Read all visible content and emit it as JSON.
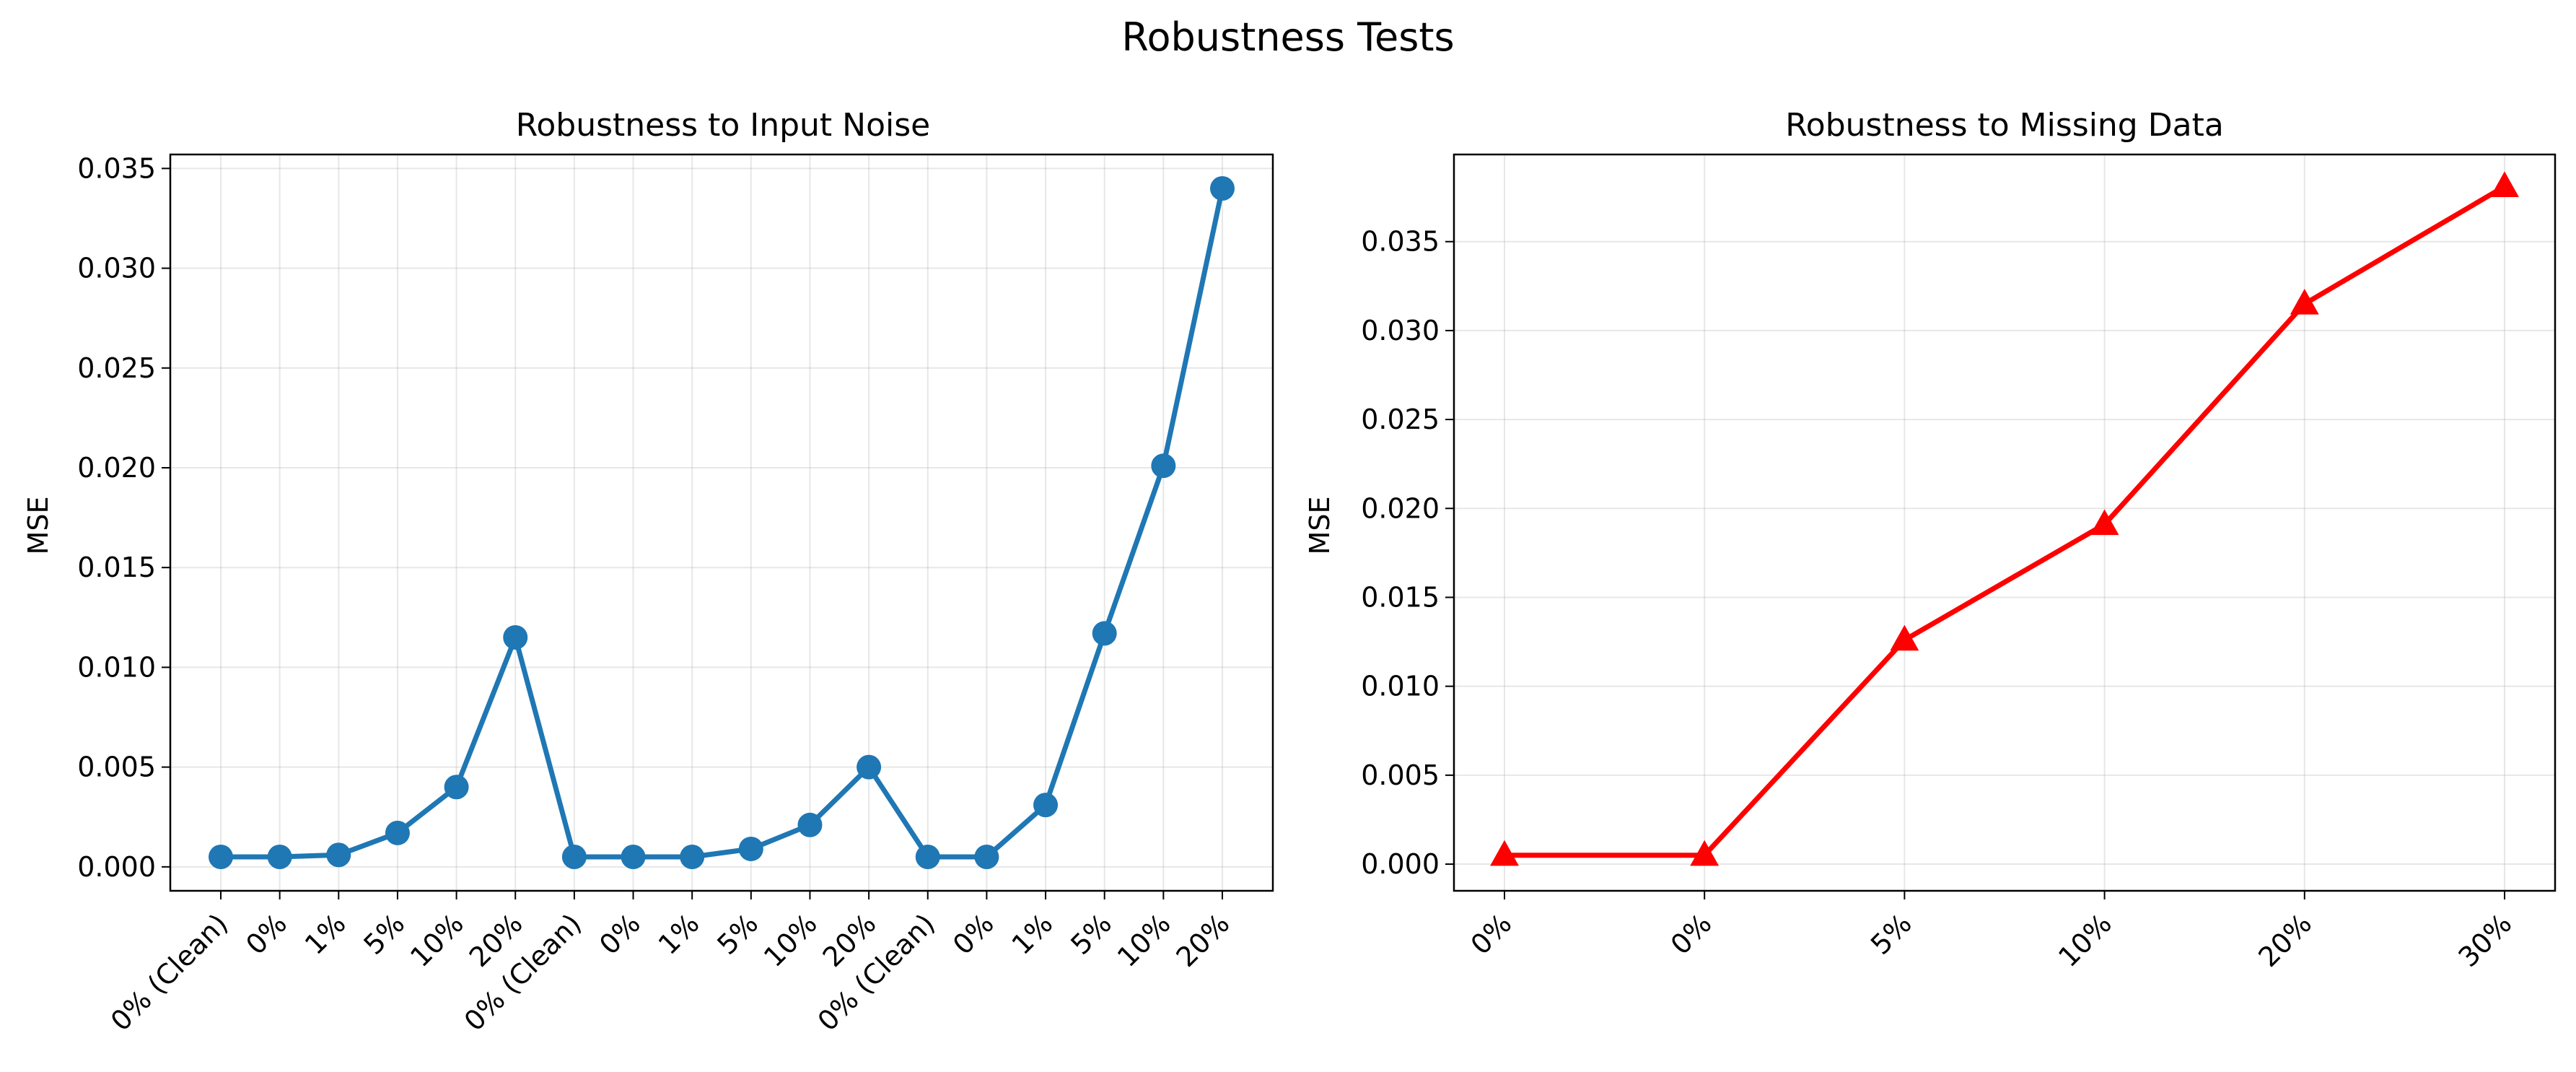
{
  "figure": {
    "title": "Robustness Tests"
  },
  "chart_data": [
    {
      "type": "line",
      "title": "Robustness to Input Noise",
      "xlabel": "",
      "ylabel": "MSE",
      "categories": [
        "0% (Clean)",
        "0%",
        "1%",
        "5%",
        "10%",
        "20%",
        "0% (Clean)",
        "0%",
        "1%",
        "5%",
        "10%",
        "20%",
        "0% (Clean)",
        "0%",
        "1%",
        "5%",
        "10%",
        "20%"
      ],
      "series": [
        {
          "values": [
            0.0005,
            0.0005,
            0.0006,
            0.0017,
            0.004,
            0.0115,
            0.0005,
            0.0005,
            0.0005,
            0.0009,
            0.0021,
            0.005,
            0.0005,
            0.0005,
            0.0031,
            0.0117,
            0.0201,
            0.034
          ]
        }
      ],
      "ylim": [
        -0.0012,
        0.0357
      ],
      "yticks": [
        "0.000",
        "0.005",
        "0.010",
        "0.015",
        "0.020",
        "0.025",
        "0.030",
        "0.035"
      ],
      "grid": true,
      "color": "#1f77b4",
      "marker": "circle"
    },
    {
      "type": "line",
      "title": "Robustness to Missing Data",
      "xlabel": "",
      "ylabel": "MSE",
      "categories": [
        "0%",
        "0%",
        "5%",
        "10%",
        "20%",
        "30%"
      ],
      "series": [
        {
          "values": [
            0.0005,
            0.0005,
            0.0126,
            0.0191,
            0.0315,
            0.0381
          ]
        }
      ],
      "ylim": [
        -0.0015,
        0.0399
      ],
      "yticks": [
        "0.000",
        "0.005",
        "0.010",
        "0.015",
        "0.020",
        "0.025",
        "0.030",
        "0.035"
      ],
      "grid": true,
      "color": "#ff0000",
      "marker": "triangle"
    }
  ]
}
